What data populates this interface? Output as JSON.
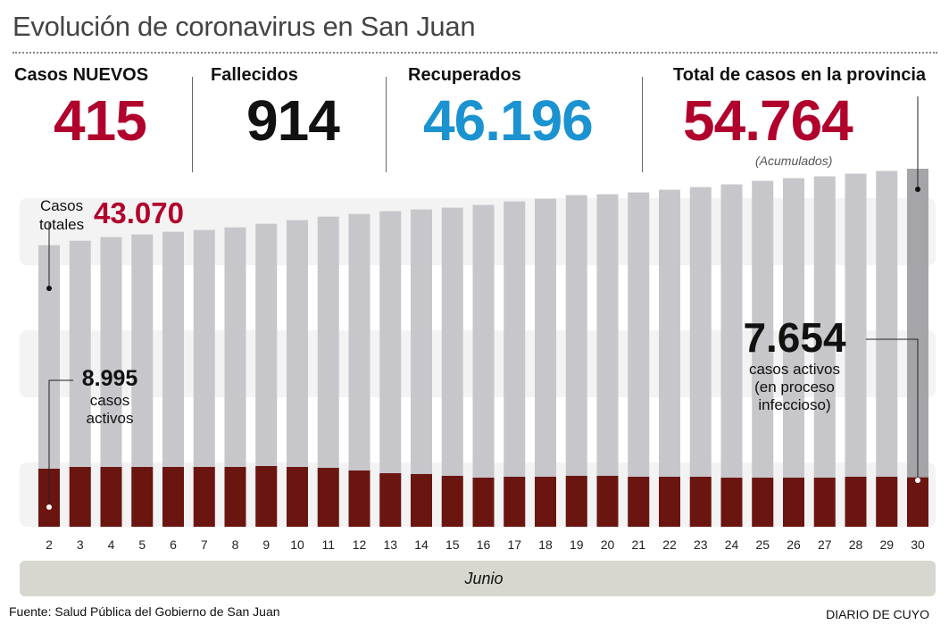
{
  "title": "Evolución de coronavirus en San Juan",
  "stats": {
    "nuevos": {
      "label": "Casos NUEVOS",
      "value": "415"
    },
    "fallecidos": {
      "label": "Fallecidos",
      "value": "914"
    },
    "recuperados": {
      "label": "Recuperados",
      "value": "46.196"
    },
    "total": {
      "label": "Total de casos en la provincia",
      "value": "54.764",
      "note": "(Acumulados)"
    }
  },
  "colors": {
    "red": "#b0022c",
    "blue": "#1b93d1",
    "dark": "#111111",
    "active": "#6b1510",
    "bar": "#c6c6cb",
    "bar_last": "#a4a4a9",
    "band": "#f3f3f4"
  },
  "annotations": {
    "totales_label_1": "Casos",
    "totales_label_2": "totales",
    "totales_value": "43.070",
    "activos_start_value": "8.995",
    "activos_start_1": "casos",
    "activos_start_2": "activos",
    "activos_end_value": "7.654",
    "activos_end_1": "casos activos",
    "activos_end_2": "(en proceso",
    "activos_end_3": "infeccioso)"
  },
  "month": "Junio",
  "source": "Fuente: Salud Pública del Gobierno de San Juan",
  "brand": "DIARIO DE CUYO",
  "chart_data": {
    "type": "bar",
    "title": "Evolución de coronavirus en San Juan",
    "xlabel": "Junio",
    "categories": [
      "2",
      "3",
      "4",
      "5",
      "6",
      "7",
      "8",
      "9",
      "10",
      "11",
      "12",
      "13",
      "14",
      "15",
      "16",
      "17",
      "18",
      "19",
      "20",
      "21",
      "22",
      "23",
      "24",
      "25",
      "26",
      "27",
      "28",
      "29",
      "30"
    ],
    "series": [
      {
        "name": "Casos totales",
        "values": [
          43070,
          43750,
          44300,
          44710,
          45120,
          45390,
          45800,
          46350,
          46900,
          47440,
          47850,
          48260,
          48540,
          48810,
          49220,
          49770,
          50180,
          50730,
          50860,
          51140,
          51550,
          51960,
          52370,
          52910,
          53320,
          53600,
          54010,
          54420,
          54764
        ]
      },
      {
        "name": "Casos activos",
        "values": [
          8995,
          9270,
          9270,
          9270,
          9270,
          9270,
          9270,
          9410,
          9270,
          9130,
          8720,
          8300,
          8170,
          7890,
          7610,
          7750,
          7750,
          7890,
          7890,
          7750,
          7750,
          7750,
          7610,
          7610,
          7610,
          7610,
          7750,
          7750,
          7654
        ]
      }
    ],
    "ylim": [
      0,
      54764
    ],
    "grid": false
  }
}
